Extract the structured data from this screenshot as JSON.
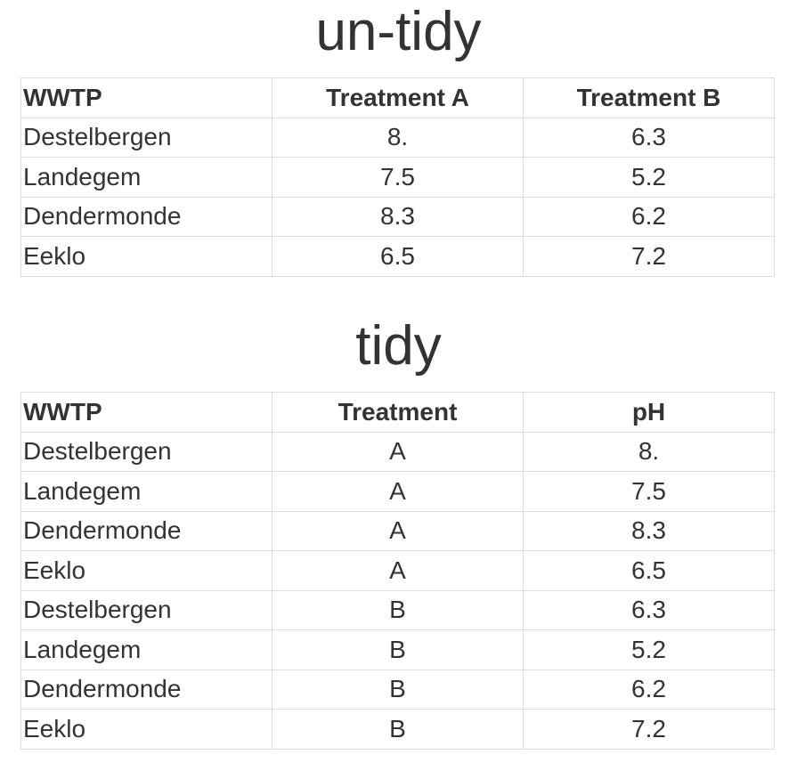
{
  "untidy": {
    "title": "un-tidy",
    "headers": [
      "WWTP",
      "Treatment A",
      "Treatment B"
    ],
    "rows": [
      [
        "Destelbergen",
        "8.",
        "6.3"
      ],
      [
        "Landegem",
        "7.5",
        "5.2"
      ],
      [
        "Dendermonde",
        "8.3",
        "6.2"
      ],
      [
        "Eeklo",
        "6.5",
        "7.2"
      ]
    ]
  },
  "tidy": {
    "title": "tidy",
    "headers": [
      "WWTP",
      "Treatment",
      "pH"
    ],
    "rows": [
      [
        "Destelbergen",
        "A",
        "8."
      ],
      [
        "Landegem",
        "A",
        "7.5"
      ],
      [
        "Dendermonde",
        "A",
        "8.3"
      ],
      [
        "Eeklo",
        "A",
        "6.5"
      ],
      [
        "Destelbergen",
        "B",
        "6.3"
      ],
      [
        "Landegem",
        "B",
        "5.2"
      ],
      [
        "Dendermonde",
        "B",
        "6.2"
      ],
      [
        "Eeklo",
        "B",
        "7.2"
      ]
    ]
  },
  "colors": {
    "text": "#333333",
    "border": "#dddddd",
    "background": "#ffffff"
  }
}
